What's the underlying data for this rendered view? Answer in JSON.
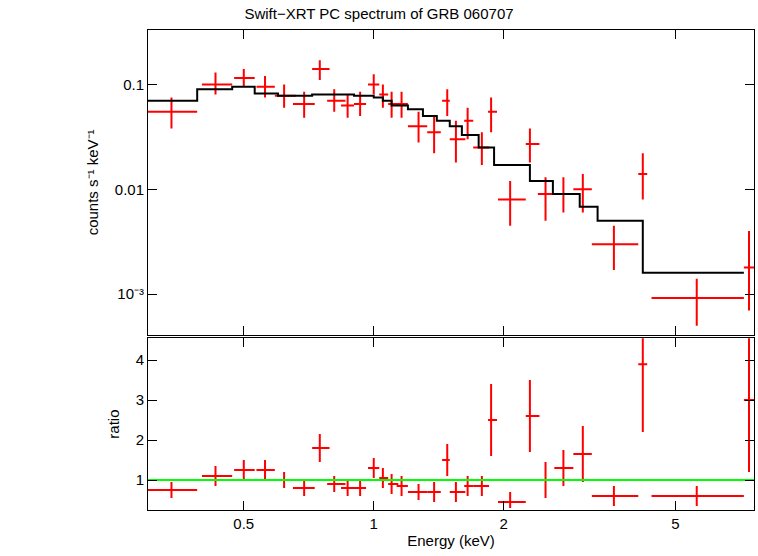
{
  "chart_data": [
    {
      "type": "scatter",
      "title": "Swift−XRT PC spectrum of GRB 060707",
      "ylabel": "counts s⁻¹ keV⁻¹",
      "log": true,
      "tick_labels": "y",
      "xlim": [
        0.3,
        7.6
      ],
      "xticks": [
        0.5,
        1,
        2,
        5
      ],
      "ylim": [
        0.00041,
        0.33
      ],
      "yticks": [
        {
          "value": 0.001,
          "label": "10⁻³"
        },
        0.01,
        0.1
      ],
      "series": [
        {
          "type": "scatter",
          "color": "#ff0000",
          "marker": "cross",
          "x": [
            0.34,
            0.43,
            0.5,
            0.56,
            0.62,
            0.69,
            0.75,
            0.81,
            0.87,
            0.93,
            1.0,
            1.05,
            1.1,
            1.16,
            1.27,
            1.38,
            1.48,
            1.55,
            1.65,
            1.78,
            1.87,
            2.07,
            2.3,
            2.5,
            2.75,
            3.05,
            3.6,
            4.2,
            5.6,
            7.4
          ],
          "x_lo": [
            0.3,
            0.4,
            0.475,
            0.535,
            0.59,
            0.65,
            0.72,
            0.78,
            0.84,
            0.9,
            0.97,
            1.03,
            1.08,
            1.13,
            1.2,
            1.33,
            1.44,
            1.5,
            1.62,
            1.7,
            1.84,
            1.94,
            2.25,
            2.4,
            2.62,
            2.9,
            3.2,
            4.1,
            4.4,
            7.2
          ],
          "x_hi": [
            0.39,
            0.47,
            0.53,
            0.59,
            0.66,
            0.73,
            0.79,
            0.86,
            0.9,
            0.96,
            1.03,
            1.08,
            1.14,
            1.2,
            1.33,
            1.43,
            1.5,
            1.63,
            1.7,
            1.85,
            1.93,
            2.25,
            2.42,
            2.62,
            2.9,
            3.2,
            4.1,
            4.3,
            7.2,
            7.6
          ],
          "values": [
            0.055,
            0.1,
            0.115,
            0.095,
            0.078,
            0.065,
            0.14,
            0.07,
            0.063,
            0.065,
            0.1,
            0.08,
            0.065,
            0.065,
            0.04,
            0.035,
            0.07,
            0.03,
            0.045,
            0.025,
            0.055,
            0.008,
            0.027,
            0.009,
            0.009,
            0.01,
            0.003,
            0.014,
            0.00092,
            0.0018
          ],
          "y_lo": [
            0.038,
            0.08,
            0.095,
            0.075,
            0.06,
            0.048,
            0.11,
            0.055,
            0.048,
            0.05,
            0.08,
            0.06,
            0.048,
            0.048,
            0.028,
            0.022,
            0.05,
            0.018,
            0.03,
            0.017,
            0.035,
            0.0045,
            0.018,
            0.005,
            0.006,
            0.006,
            0.0017,
            0.008,
            0.0005,
            0.0007
          ],
          "y_hi": [
            0.075,
            0.13,
            0.14,
            0.12,
            0.1,
            0.085,
            0.17,
            0.09,
            0.08,
            0.085,
            0.125,
            0.1,
            0.085,
            0.085,
            0.055,
            0.05,
            0.09,
            0.045,
            0.06,
            0.035,
            0.075,
            0.012,
            0.038,
            0.013,
            0.013,
            0.014,
            0.0045,
            0.022,
            0.0014,
            0.004
          ]
        },
        {
          "type": "line",
          "line_style": "step",
          "color": "#000000",
          "x": [
            0.3,
            0.39,
            0.47,
            0.53,
            0.6,
            0.67,
            0.72,
            0.8,
            0.9,
            1.0,
            1.05,
            1.1,
            1.2,
            1.3,
            1.4,
            1.5,
            1.6,
            1.75,
            1.9,
            2.3,
            2.6,
            3.0,
            3.3,
            4.2,
            7.2
          ],
          "values": [
            0.07,
            0.09,
            0.095,
            0.082,
            0.078,
            0.078,
            0.08,
            0.08,
            0.078,
            0.075,
            0.07,
            0.063,
            0.058,
            0.05,
            0.045,
            0.04,
            0.033,
            0.025,
            0.017,
            0.012,
            0.009,
            0.0068,
            0.005,
            0.0016,
            0.0016
          ]
        }
      ]
    },
    {
      "type": "scatter",
      "xlabel": "Energy (keV)",
      "ylabel": "ratio",
      "log": "x",
      "xlim": [
        0.3,
        7.6
      ],
      "xticks": [
        0.5,
        1,
        2,
        5
      ],
      "ylim": [
        0.25,
        4.55
      ],
      "yticks": [
        1,
        2,
        3,
        4
      ],
      "series": [
        {
          "type": "scatter",
          "color": "#ff0000",
          "marker": "cross",
          "x": [
            0.34,
            0.43,
            0.5,
            0.56,
            0.62,
            0.69,
            0.75,
            0.81,
            0.87,
            0.93,
            1.0,
            1.05,
            1.1,
            1.16,
            1.27,
            1.38,
            1.48,
            1.55,
            1.65,
            1.78,
            1.87,
            2.07,
            2.3,
            2.5,
            2.75,
            3.05,
            3.6,
            4.2,
            5.6,
            7.4
          ],
          "x_lo": [
            0.3,
            0.4,
            0.475,
            0.535,
            0.59,
            0.65,
            0.72,
            0.78,
            0.84,
            0.9,
            0.97,
            1.03,
            1.08,
            1.13,
            1.2,
            1.33,
            1.44,
            1.5,
            1.62,
            1.7,
            1.84,
            1.94,
            2.25,
            2.4,
            2.62,
            2.9,
            3.2,
            4.1,
            4.4,
            7.2
          ],
          "x_hi": [
            0.39,
            0.47,
            0.53,
            0.59,
            0.66,
            0.73,
            0.79,
            0.86,
            0.9,
            0.96,
            1.03,
            1.08,
            1.14,
            1.2,
            1.33,
            1.43,
            1.5,
            1.63,
            1.7,
            1.85,
            1.93,
            2.25,
            2.42,
            2.62,
            2.9,
            3.2,
            4.1,
            4.3,
            7.2,
            7.6
          ],
          "values": [
            0.75,
            1.1,
            1.25,
            1.25,
            1.0,
            0.8,
            1.8,
            0.9,
            0.8,
            0.8,
            1.3,
            1.05,
            0.9,
            0.85,
            0.7,
            0.7,
            1.5,
            0.7,
            0.85,
            0.85,
            2.5,
            0.45,
            2.6,
            1.0,
            1.3,
            1.65,
            0.6,
            3.9,
            0.6,
            3.0
          ],
          "y_lo": [
            0.55,
            0.85,
            1.0,
            1.0,
            0.8,
            0.6,
            1.45,
            0.7,
            0.6,
            0.6,
            1.05,
            0.8,
            0.65,
            0.6,
            0.5,
            0.45,
            1.1,
            0.45,
            0.6,
            0.6,
            1.6,
            0.3,
            1.7,
            0.55,
            0.85,
            0.95,
            0.35,
            2.2,
            0.35,
            1.2
          ],
          "y_hi": [
            0.95,
            1.35,
            1.5,
            1.5,
            1.2,
            1.0,
            2.15,
            1.1,
            1.0,
            1.0,
            1.55,
            1.3,
            1.15,
            1.1,
            0.9,
            0.95,
            1.9,
            0.95,
            1.1,
            1.1,
            3.4,
            0.7,
            3.5,
            1.45,
            1.75,
            2.35,
            0.85,
            5.0,
            0.85,
            4.6
          ]
        },
        {
          "type": "line",
          "color": "#00ff00",
          "x": [
            0.3,
            7.6
          ],
          "values": [
            1,
            1
          ]
        }
      ]
    }
  ]
}
